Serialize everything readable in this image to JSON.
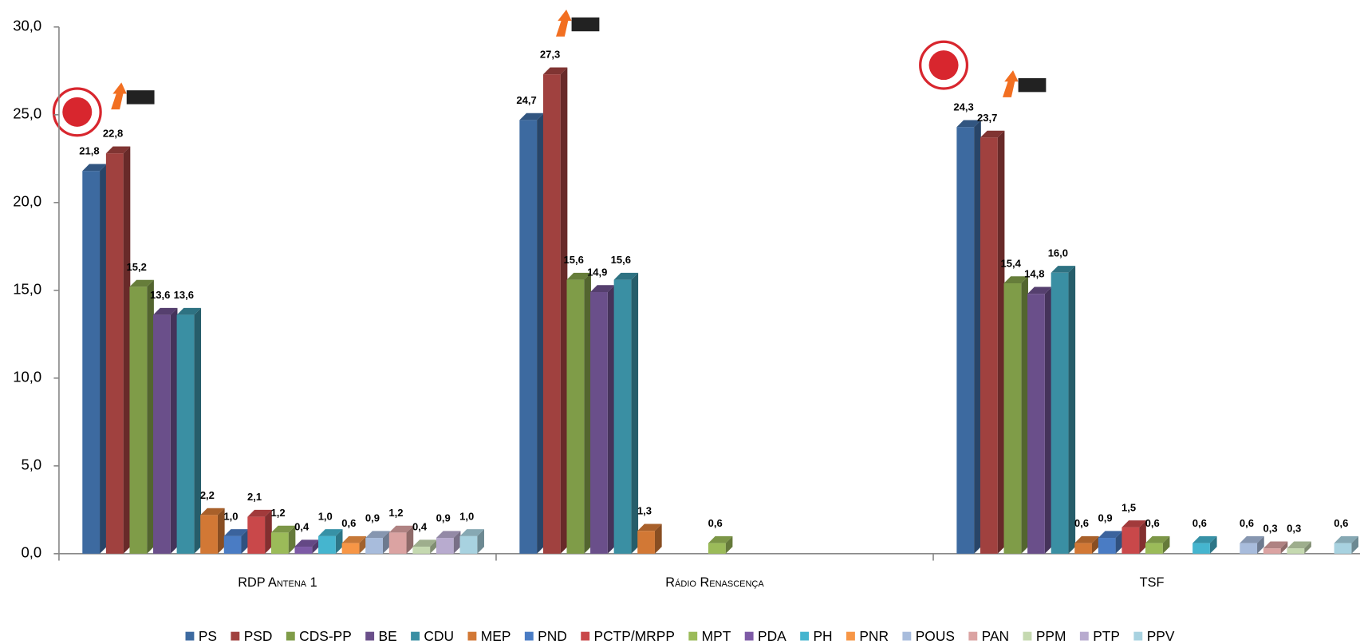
{
  "chart_data": {
    "type": "bar3d",
    "categories": [
      "RDP Antena 1",
      "Rádio Renascença",
      "TSF"
    ],
    "ylim": [
      0,
      30
    ],
    "yticks": [
      {
        "value": 0,
        "label": "0,0"
      },
      {
        "value": 5,
        "label": "5,0"
      },
      {
        "value": 10,
        "label": "10,0"
      },
      {
        "value": 15,
        "label": "15,0"
      },
      {
        "value": 20,
        "label": "20,0"
      },
      {
        "value": 25,
        "label": "25,0"
      },
      {
        "value": 30,
        "label": "30,0"
      }
    ],
    "series": [
      {
        "name": "PS",
        "color": "#3d6aa0",
        "values": [
          21.8,
          24.7,
          24.3
        ],
        "value_labels": [
          "21,8",
          "24,7",
          "24,3"
        ]
      },
      {
        "name": "PSD",
        "color": "#a0413f",
        "values": [
          22.8,
          27.3,
          23.7
        ],
        "value_labels": [
          "22,8",
          "27,3",
          "23,7"
        ]
      },
      {
        "name": "CDS-PP",
        "color": "#7f9c48",
        "values": [
          15.2,
          15.6,
          15.4
        ],
        "value_labels": [
          "15,2",
          "15,6",
          "15,4"
        ]
      },
      {
        "name": "BE",
        "color": "#6a4f8a",
        "values": [
          13.6,
          14.9,
          14.8
        ],
        "value_labels": [
          "13,6",
          "14,9",
          "14,8"
        ]
      },
      {
        "name": "CDU",
        "color": "#3a8fa3",
        "values": [
          13.6,
          15.6,
          16.0
        ],
        "value_labels": [
          "13,6",
          "15,6",
          "16,0"
        ]
      },
      {
        "name": "MEP",
        "color": "#d27835",
        "values": [
          2.2,
          1.3,
          0.6
        ],
        "value_labels": [
          "2,2",
          "1,3",
          "0,6"
        ]
      },
      {
        "name": "PND",
        "color": "#4a7cc4",
        "values": [
          1.0,
          null,
          0.9
        ],
        "value_labels": [
          "1,0",
          null,
          "0,9"
        ]
      },
      {
        "name": "PCTP/MRPP",
        "color": "#c9484a",
        "values": [
          2.1,
          null,
          1.5
        ],
        "value_labels": [
          "2,1",
          null,
          "1,5"
        ]
      },
      {
        "name": "MPT",
        "color": "#9bbb59",
        "values": [
          1.2,
          0.6,
          0.6
        ],
        "value_labels": [
          "1,2",
          "0,6",
          "0,6"
        ]
      },
      {
        "name": "PDA",
        "color": "#7d5aa6",
        "values": [
          0.4,
          null,
          null
        ],
        "value_labels": [
          "0,4",
          null,
          null
        ]
      },
      {
        "name": "PH",
        "color": "#45b5cf",
        "values": [
          1.0,
          null,
          0.6
        ],
        "value_labels": [
          "1,0",
          null,
          "0,6"
        ]
      },
      {
        "name": "PNR",
        "color": "#f79646",
        "values": [
          0.6,
          null,
          null
        ],
        "value_labels": [
          "0,6",
          null,
          null
        ]
      },
      {
        "name": "POUS",
        "color": "#a8bcdc",
        "values": [
          0.9,
          null,
          0.6
        ],
        "value_labels": [
          "0,9",
          null,
          "0,6"
        ]
      },
      {
        "name": "PAN",
        "color": "#dba3a2",
        "values": [
          1.2,
          null,
          0.3
        ],
        "value_labels": [
          "1,2",
          null,
          "0,3"
        ]
      },
      {
        "name": "PPM",
        "color": "#c5d9b0",
        "values": [
          0.4,
          null,
          0.3
        ],
        "value_labels": [
          "0,4",
          null,
          "0,3"
        ]
      },
      {
        "name": "PTP",
        "color": "#b8abcf",
        "values": [
          0.9,
          null,
          null
        ],
        "value_labels": [
          "0,9",
          null,
          null
        ]
      },
      {
        "name": "PPV",
        "color": "#a8d2e0",
        "values": [
          1.0,
          null,
          0.6
        ],
        "value_labels": [
          "1,0",
          null,
          "0,6"
        ]
      }
    ]
  }
}
